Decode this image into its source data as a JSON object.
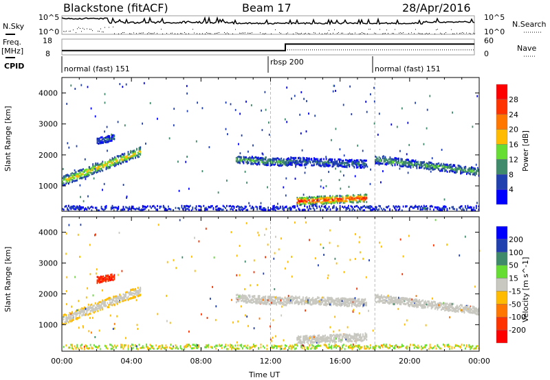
{
  "header": {
    "title": "Blackstone (fitACF)",
    "beam": "Beam 17",
    "date": "28/Apr/2016"
  },
  "summary": {
    "nsky_label": "N.Sky",
    "nsearch_label": "N.Search",
    "noise_ticks": [
      "10^5",
      "10^0"
    ],
    "freq_label": "Freq.",
    "freq_unit": "[MHz]",
    "freq_ticks": [
      "18",
      "8"
    ],
    "nave_label": "Nave",
    "nave_ticks": [
      "60",
      "0"
    ],
    "cpid_label": "CPID",
    "cpid": [
      {
        "name": "normal (fast) 151",
        "start_hour": 0
      },
      {
        "name": "rbsp 200",
        "start_hour": 12
      },
      {
        "name": "normal (fast) 151",
        "start_hour": 18
      }
    ],
    "freq_mhz": [
      {
        "from_hour": 0,
        "to_hour": 13,
        "value": 10.5
      },
      {
        "from_hour": 13,
        "to_hour": 24,
        "value": 15
      }
    ],
    "nave": [
      {
        "from_hour": 0,
        "to_hour": 13,
        "value": 15
      },
      {
        "from_hour": 13,
        "to_hour": 24,
        "value": 18
      }
    ]
  },
  "chart_data": [
    {
      "type": "heatmap",
      "title": "Power",
      "ylabel": "Slant Range [km]",
      "xlabel": "Time UT",
      "xlim": [
        0,
        24
      ],
      "ylim": [
        180,
        4500
      ],
      "xticks": [
        "00:00",
        "04:00",
        "08:00",
        "12:00",
        "16:00",
        "20:00",
        "00:00"
      ],
      "yticks": [
        "1000",
        "2000",
        "3000",
        "4000"
      ],
      "colorbar": {
        "label": "Power [dB]",
        "ticks": [
          "28",
          "24",
          "20",
          "16",
          "12",
          "8",
          "4"
        ],
        "colors": [
          "#ff0000",
          "#ff3300",
          "#ff7700",
          "#ffbb00",
          "#66dd33",
          "#3f8a6a",
          "#2040b0",
          "#0000ff"
        ]
      },
      "echo_regions": [
        {
          "from_hour": 0,
          "to_hour": 4.5,
          "range_start_km": 1150,
          "range_end_km": 2100,
          "width_km": 300,
          "power_db": 18
        },
        {
          "from_hour": 2,
          "to_hour": 3,
          "range_start_km": 2450,
          "range_end_km": 2550,
          "width_km": 200,
          "power_db": 8
        },
        {
          "from_hour": 10,
          "to_hour": 13,
          "range_start_km": 1850,
          "range_end_km": 1750,
          "width_km": 250,
          "power_db": 12
        },
        {
          "from_hour": 13,
          "to_hour": 17.5,
          "range_start_km": 1800,
          "range_end_km": 1700,
          "width_km": 250,
          "power_db": 8
        },
        {
          "from_hour": 13.5,
          "to_hour": 17.5,
          "range_start_km": 500,
          "range_end_km": 600,
          "width_km": 250,
          "power_db": 28
        },
        {
          "from_hour": 18,
          "to_hour": 24,
          "range_start_km": 1850,
          "range_end_km": 1450,
          "width_km": 250,
          "power_db": 12
        },
        {
          "from_hour": 0,
          "to_hour": 24,
          "range_start_km": 280,
          "range_end_km": 280,
          "width_km": 150,
          "power_db": 6
        }
      ]
    },
    {
      "type": "heatmap",
      "title": "Velocity",
      "ylabel": "Slant Range [km]",
      "xlabel": "Time UT",
      "xlim": [
        0,
        24
      ],
      "ylim": [
        140,
        4500
      ],
      "xticks": [
        "00:00",
        "04:00",
        "08:00",
        "12:00",
        "16:00",
        "20:00",
        "00:00"
      ],
      "yticks": [
        "1000",
        "2000",
        "3000",
        "4000"
      ],
      "colorbar": {
        "label": "Velocity [m s^-1]",
        "ticks": [
          "200",
          "100",
          "50",
          "15",
          "-15",
          "-50",
          "-100",
          "-200"
        ],
        "colors": [
          "#0000ff",
          "#2040b0",
          "#3f8a6a",
          "#66dd33",
          "#c8c8c0",
          "#ffbb00",
          "#ff7700",
          "#ff3300",
          "#ff0000"
        ]
      },
      "dominant_velocity_ms": 0,
      "notes_region": {
        "from_hour": 2,
        "to_hour": 3,
        "range_km": 2500,
        "velocity_ms": -150
      }
    }
  ]
}
